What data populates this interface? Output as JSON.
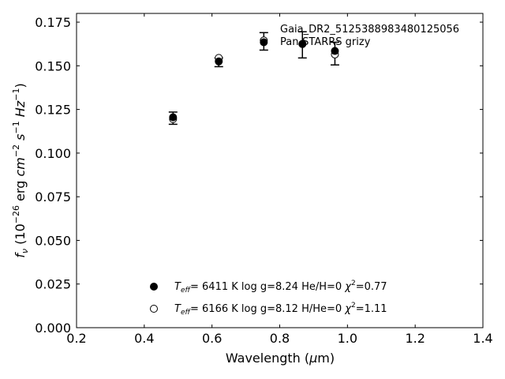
{
  "chart_data": {
    "type": "scatter",
    "title": "",
    "annotation": [
      "Gaia_DR2_5125388983480125056",
      "Pan-STARRS grizy"
    ],
    "xlabel": "Wavelength (μm)",
    "ylabel": "fν (10⁻²⁶ erg cm⁻² s⁻¹ Hz⁻¹)",
    "xlim": [
      0.2,
      1.4
    ],
    "ylim": [
      0.0,
      0.18
    ],
    "xticks": [
      "0.2",
      "0.4",
      "0.6",
      "0.8",
      "1.0",
      "1.2",
      "1.4"
    ],
    "yticks": [
      "0.000",
      "0.025",
      "0.050",
      "0.075",
      "0.100",
      "0.125",
      "0.150",
      "0.175"
    ],
    "grid": false,
    "legend_position": "bottom-center",
    "observed": {
      "x": [
        0.485,
        0.62,
        0.753,
        0.867,
        0.963
      ],
      "y": [
        0.12,
        0.152,
        0.164,
        0.162,
        0.157
      ],
      "yerr": [
        0.0035,
        0.0025,
        0.005,
        0.0075,
        0.0065
      ]
    },
    "series": [
      {
        "marker": "filled",
        "label": "T_eff=  6411 K  log g=8.24  He/H=0  χ²=0.77",
        "x": [
          0.485,
          0.62,
          0.753,
          0.867,
          0.963
        ],
        "y": [
          0.1205,
          0.1525,
          0.1635,
          0.1625,
          0.1585
        ]
      },
      {
        "marker": "open",
        "label": "T_eff=  6166 K  log g=8.12  H/He=0  χ²=1.11",
        "x": [
          0.485,
          0.62,
          0.753,
          0.867,
          0.963
        ],
        "y": [
          0.1195,
          0.1545,
          0.1645,
          0.1625,
          0.1565
        ]
      }
    ]
  }
}
